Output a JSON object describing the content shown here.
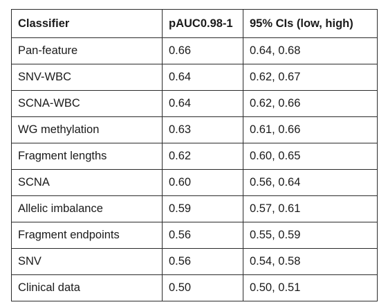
{
  "table": {
    "headers": [
      "Classifier",
      "pAUC0.98-1",
      "95% CIs (low, high)"
    ],
    "rows": [
      [
        "Pan-feature",
        "0.66",
        "0.64, 0.68"
      ],
      [
        "SNV-WBC",
        "0.64",
        "0.62, 0.67"
      ],
      [
        "SCNA-WBC",
        "0.64",
        "0.62, 0.66"
      ],
      [
        "WG methylation",
        "0.63",
        "0.61, 0.66"
      ],
      [
        "Fragment lengths",
        "0.62",
        "0.60, 0.65"
      ],
      [
        "SCNA",
        "0.60",
        "0.56, 0.64"
      ],
      [
        "Allelic imbalance",
        "0.59",
        "0.57, 0.61"
      ],
      [
        "Fragment endpoints",
        "0.56",
        "0.55, 0.59"
      ],
      [
        "SNV",
        "0.56",
        "0.54, 0.58"
      ],
      [
        "Clinical data",
        "0.50",
        "0.50, 0.51"
      ]
    ]
  }
}
